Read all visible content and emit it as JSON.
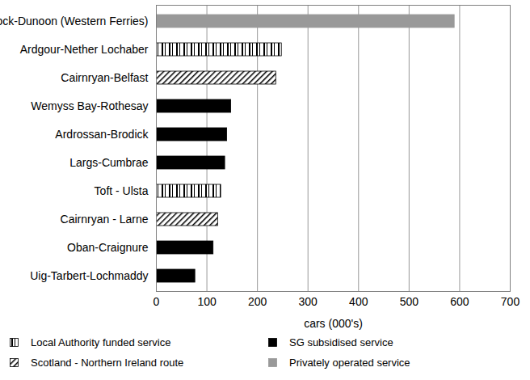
{
  "chart_data": {
    "type": "bar",
    "orientation": "horizontal",
    "categories": [
      "Gourock-Dunoon (Western Ferries)",
      "Ardgour-Nether Lochaber",
      "Cairnryan-Belfast",
      "Wemyss Bay-Rothesay",
      "Ardrossan-Brodick",
      "Largs-Cumbrae",
      "Toft - Ulsta",
      "Cairnryan - Larne",
      "Oban-Craignure",
      "Uig-Tarbert-Lochmaddy"
    ],
    "series": [
      {
        "name": "Local Authority funded service",
        "color": "#000000",
        "values": [
          null,
          248,
          null,
          null,
          null,
          null,
          128,
          null,
          null,
          null
        ]
      },
      {
        "name": "SG subsidised service",
        "color": "#000000",
        "values": [
          null,
          null,
          null,
          148,
          140,
          136,
          null,
          null,
          113,
          77
        ]
      },
      {
        "name": "Scotland - Northern Ireland route",
        "color": "#000000",
        "values": [
          null,
          null,
          237,
          null,
          null,
          null,
          null,
          122,
          null,
          null
        ]
      },
      {
        "name": "Privately operated service",
        "color": "#999999",
        "values": [
          590,
          null,
          null,
          null,
          null,
          null,
          null,
          null,
          null,
          null
        ]
      }
    ],
    "x_label": "cars (000's)",
    "xlim": [
      0,
      700
    ],
    "xticks": [
      0,
      100,
      200,
      300,
      400,
      500,
      600,
      700
    ],
    "grid": true,
    "legend": "bottom"
  }
}
